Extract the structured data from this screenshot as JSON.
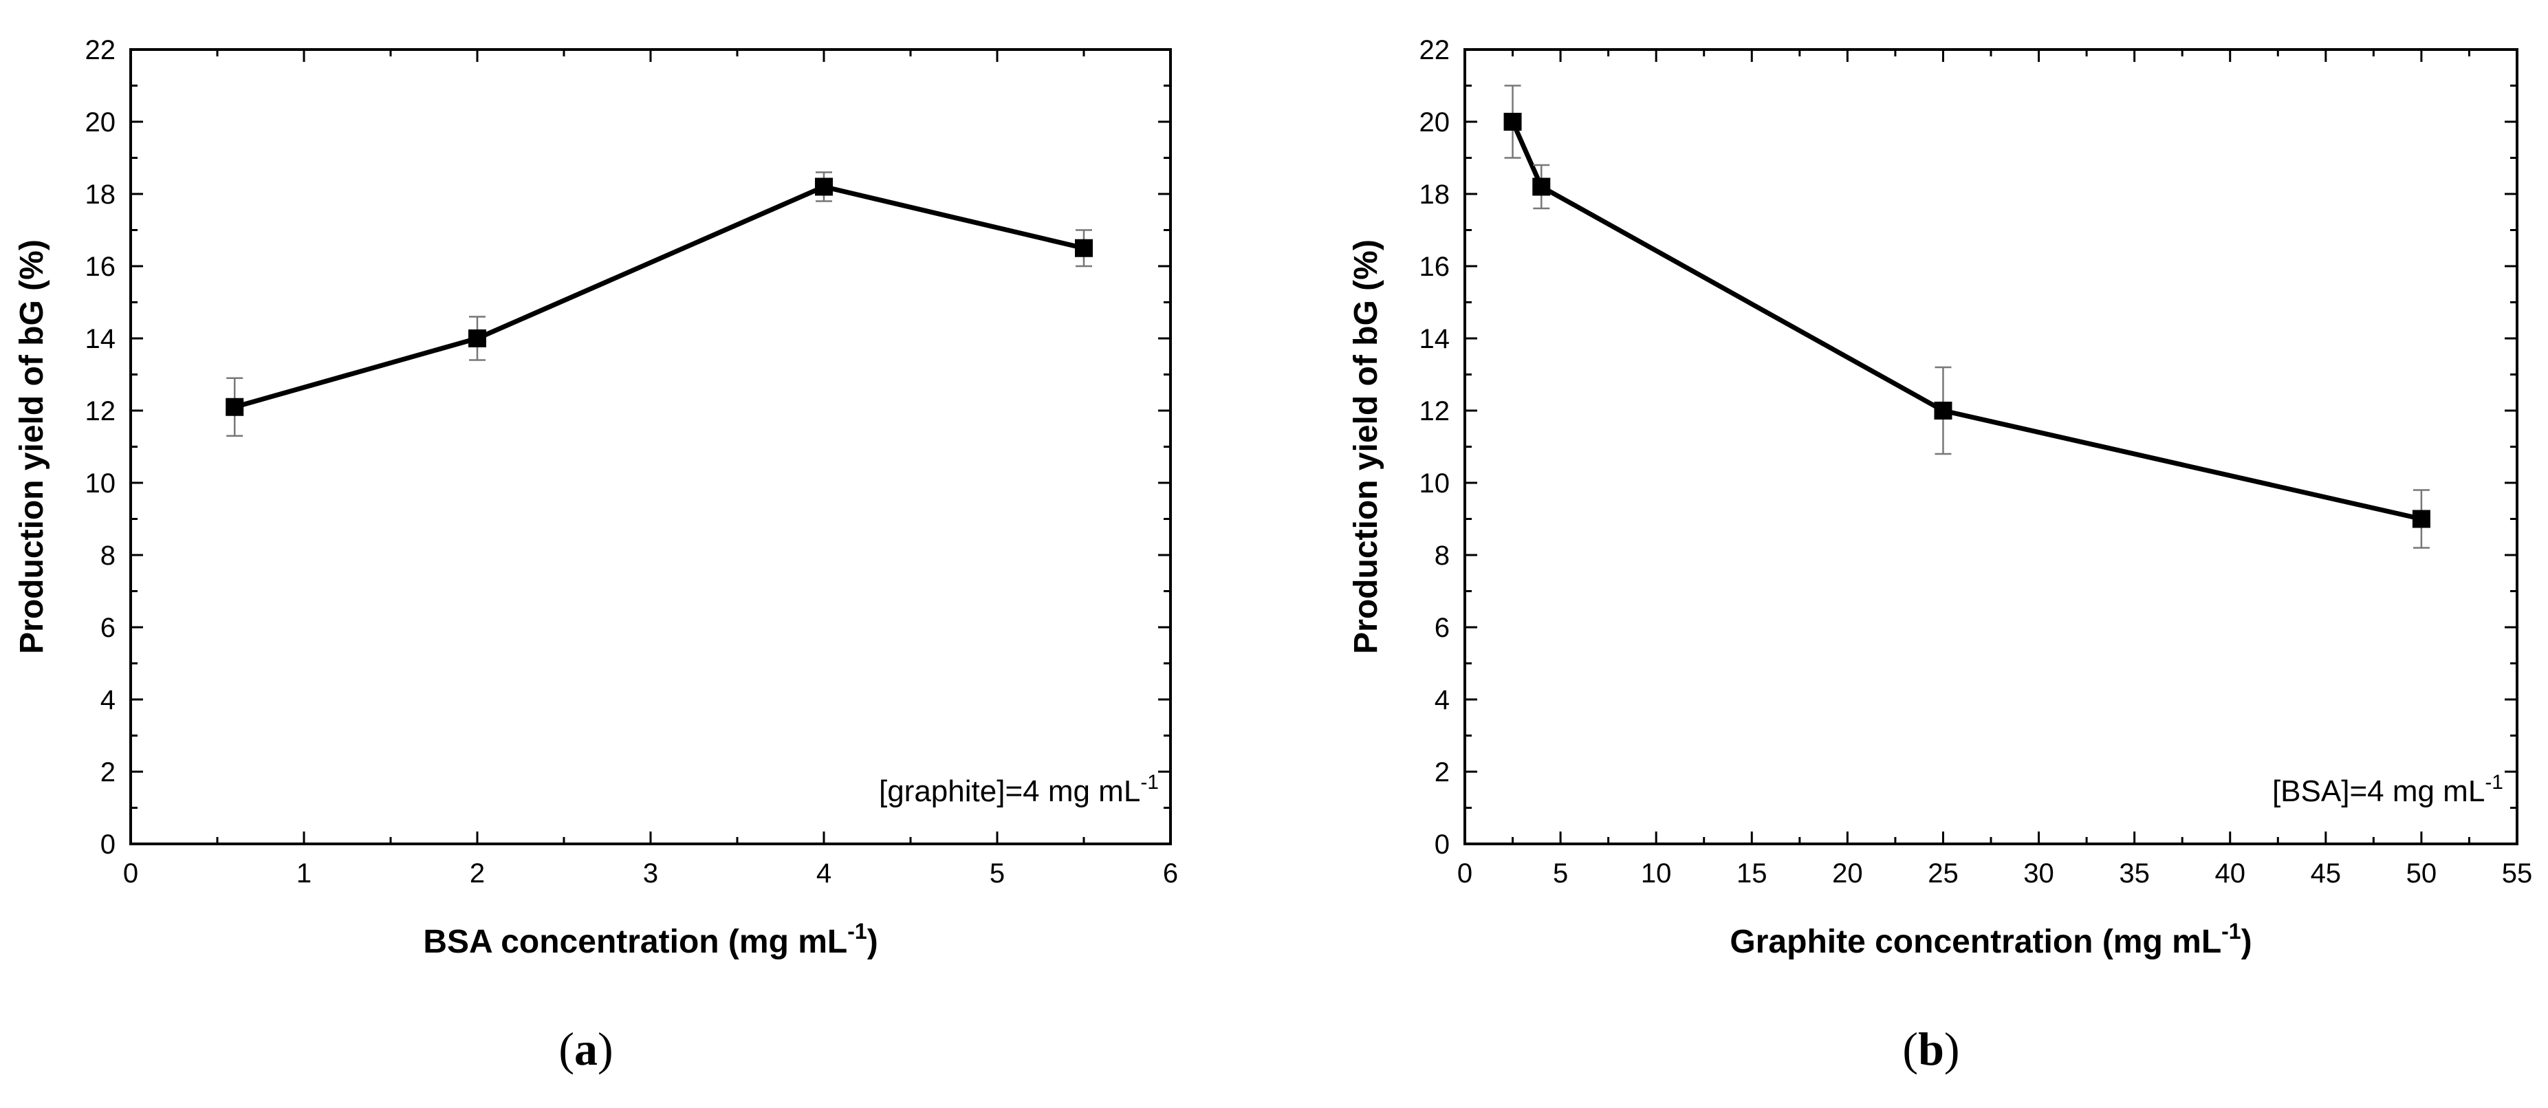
{
  "figure": {
    "panels": [
      {
        "id": "a",
        "label_open": "(",
        "label_letter": "a",
        "label_close": ")"
      },
      {
        "id": "b",
        "label_open": "(",
        "label_letter": "b",
        "label_close": ")"
      }
    ]
  },
  "chart_data": [
    {
      "type": "line",
      "panel": "a",
      "title": "",
      "xlabel": "BSA concentration (mg mL",
      "xlabel_sup": "-1",
      "xlabel_end": ")",
      "ylabel": "Production yield of bG (%)",
      "annotation": "[graphite]=4 mg mL",
      "annotation_sup": "-1",
      "xlim": [
        0,
        6
      ],
      "ylim": [
        0,
        22
      ],
      "xticks": [
        0,
        1,
        2,
        3,
        4,
        5,
        6
      ],
      "yticks": [
        0,
        2,
        4,
        6,
        8,
        10,
        12,
        14,
        16,
        18,
        20,
        22
      ],
      "grid": false,
      "series": [
        {
          "name": "production yield",
          "x": [
            0.6,
            2,
            4,
            5.5
          ],
          "y": [
            12.1,
            14.0,
            18.2,
            16.5
          ],
          "error": [
            0.8,
            0.6,
            0.4,
            0.5
          ]
        }
      ]
    },
    {
      "type": "line",
      "panel": "b",
      "title": "",
      "xlabel": "Graphite concentration (mg mL",
      "xlabel_sup": "-1",
      "xlabel_end": ")",
      "ylabel": "Production yield of bG (%)",
      "annotation": "[BSA]=4 mg mL",
      "annotation_sup": "-1",
      "xlim": [
        0,
        55
      ],
      "ylim": [
        0,
        22
      ],
      "xticks": [
        0,
        5,
        10,
        15,
        20,
        25,
        30,
        35,
        40,
        45,
        50,
        55
      ],
      "yticks": [
        0,
        2,
        4,
        6,
        8,
        10,
        12,
        14,
        16,
        18,
        20,
        22
      ],
      "grid": false,
      "series": [
        {
          "name": "production yield",
          "x": [
            2.5,
            4,
            25,
            50
          ],
          "y": [
            20.0,
            18.2,
            12.0,
            9.0
          ],
          "error": [
            1.0,
            0.6,
            1.2,
            0.8
          ]
        }
      ]
    }
  ]
}
